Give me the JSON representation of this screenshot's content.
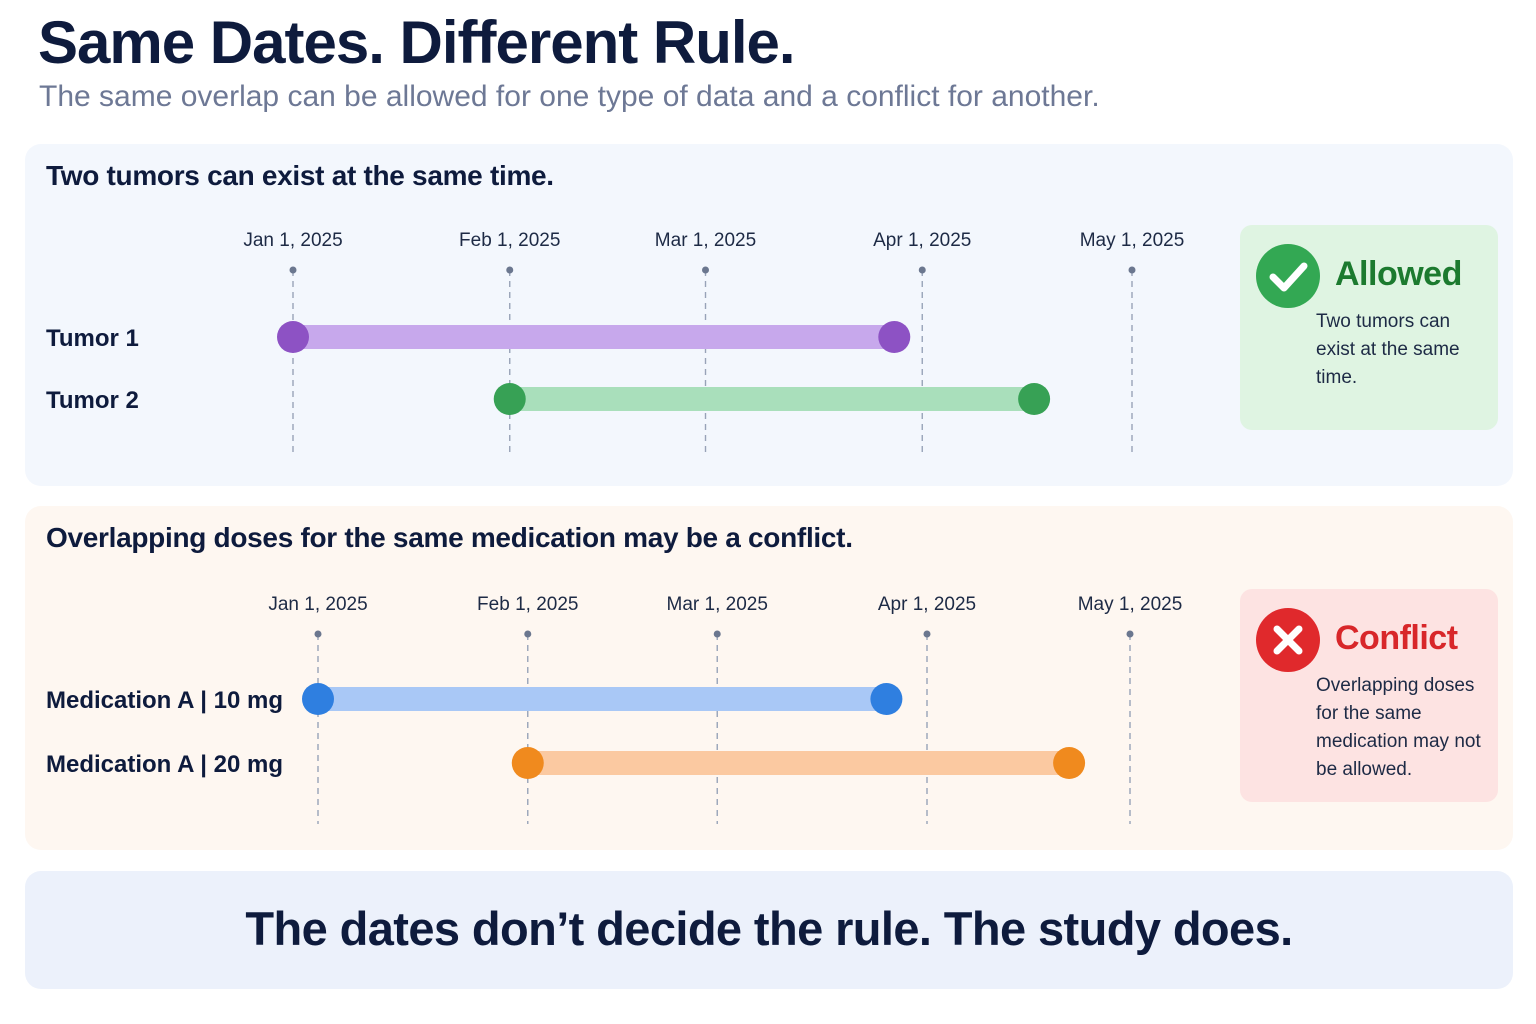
{
  "header": {
    "title": "Same Dates. Different Rule.",
    "subtitle": "The same overlap can be allowed for one type of data and a conflict for another."
  },
  "panels": [
    {
      "heading": "Two tumors can exist at the same time.",
      "background": "#f3f7fd",
      "ticks": [
        "Jan 1, 2025",
        "Feb 1, 2025",
        "Mar 1, 2025",
        "Apr 1, 2025",
        "May 1, 2025"
      ],
      "rows": [
        {
          "label": "Tumor 1",
          "start": "2025-01-01",
          "end": "2025-03-28",
          "bar_color": "#c7a8ec",
          "dot_color": "#8d52c4"
        },
        {
          "label": "Tumor 2",
          "start": "2025-02-01",
          "end": "2025-04-17",
          "bar_color": "#a9dfbb",
          "dot_color": "#37a155"
        }
      ],
      "verdict": {
        "status": "allowed",
        "icon": "check-circle-icon",
        "title": "Allowed",
        "text": "Two tumors can exist at the same time.",
        "color": "#1c7a2f",
        "icon_color": "#33a853",
        "background": "#dff4e2"
      }
    },
    {
      "heading": "Overlapping doses for the same medication may be a conflict.",
      "background": "#fef7f1",
      "ticks": [
        "Jan 1, 2025",
        "Feb 1, 2025",
        "Mar 1, 2025",
        "Apr 1, 2025",
        "May 1, 2025"
      ],
      "rows": [
        {
          "label": "Medication A | 10 mg",
          "start": "2025-01-01",
          "end": "2025-03-26",
          "bar_color": "#a9c8f6",
          "dot_color": "#2f7fe0"
        },
        {
          "label": "Medication A | 20 mg",
          "start": "2025-02-01",
          "end": "2025-04-22",
          "bar_color": "#fbc9a1",
          "dot_color": "#f08a1e"
        }
      ],
      "verdict": {
        "status": "conflict",
        "icon": "x-circle-icon",
        "title": "Conflict",
        "text": "Overlapping doses for the same medication may not be allowed.",
        "color": "#d8272a",
        "icon_color": "#e0292c",
        "background": "#fde3e2"
      }
    }
  ],
  "footer": {
    "text": "The dates don’t decide the rule. The study does."
  }
}
